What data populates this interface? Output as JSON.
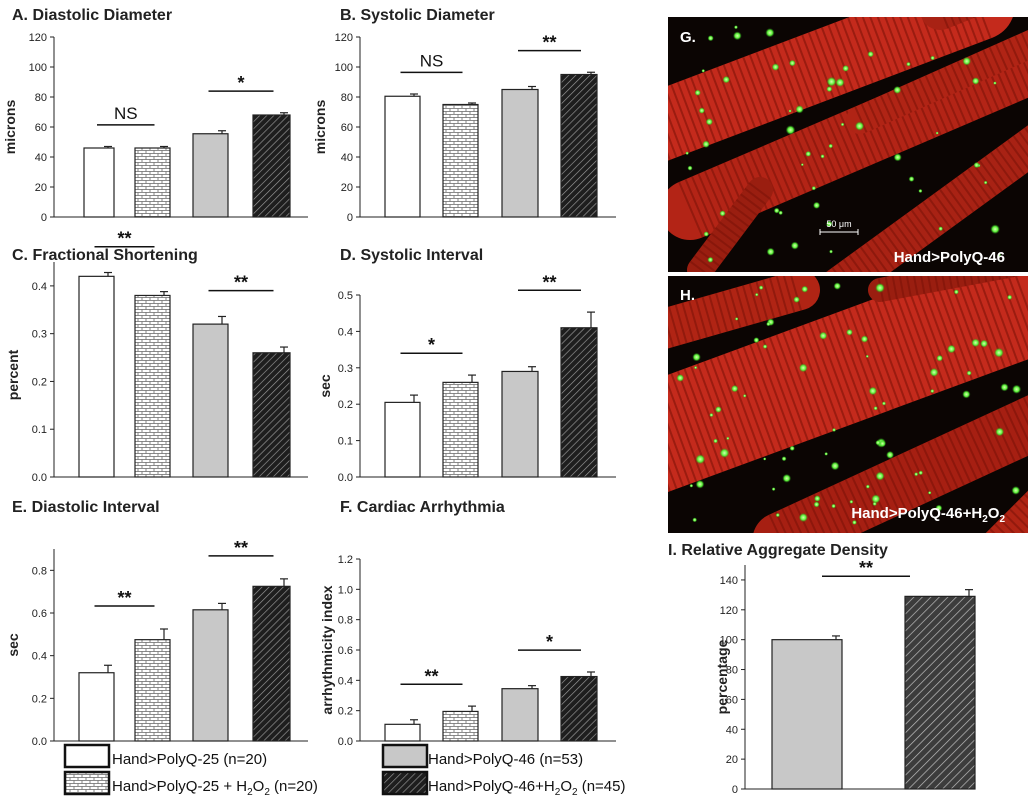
{
  "legend": [
    {
      "key": "c25",
      "label": "Hand>PolyQ-25 (n=20)"
    },
    {
      "key": "c25h",
      "label": "Hand>PolyQ-25 + H",
      "sub": "2",
      "tail": "O",
      "sub2": "2",
      "after": " (n=20)"
    },
    {
      "key": "c46",
      "label": "Hand>PolyQ-46 (n=53)"
    },
    {
      "key": "c46h",
      "label": "Hand>PolyQ-46+H",
      "sub": "2",
      "tail": "O",
      "sub2": "2",
      "after": " (n=45)"
    }
  ],
  "colors": {
    "c25": "#ffffff",
    "c25h": "#ffffff",
    "c46": "#c8c8c8",
    "c46h": "#3a3a3a",
    "red": "#c42a1c",
    "green": "#7dff5a"
  },
  "images": [
    {
      "letter": "G.",
      "caption": "Hand>PolyQ-46",
      "scale": "50 μm"
    },
    {
      "letter": "H.",
      "caption": "Hand>PolyQ-46+H",
      "sub": "2",
      "tail": "O",
      "sub2": "2"
    }
  ],
  "chart_data": [
    {
      "id": "A",
      "type": "bar",
      "title": "A. Diastolic Diameter",
      "ylabel": "microns",
      "ylim": [
        0,
        120
      ],
      "yticks": [
        "0",
        "20",
        "40",
        "60",
        "80",
        "100",
        "120"
      ],
      "values": [
        46,
        46,
        55.5,
        68
      ],
      "errors": [
        1,
        1,
        2,
        1.5
      ],
      "sig": [
        {
          "pair": [
            0,
            1
          ],
          "label": "NS"
        },
        {
          "pair": [
            2,
            3
          ],
          "label": "*"
        }
      ]
    },
    {
      "id": "B",
      "type": "bar",
      "title": "B. Systolic Diameter",
      "ylabel": "microns",
      "ylim": [
        0,
        120
      ],
      "yticks": [
        "0",
        "20",
        "40",
        "60",
        "80",
        "100",
        "120"
      ],
      "values": [
        80.5,
        75,
        85,
        95
      ],
      "errors": [
        1.5,
        1,
        2,
        1.5
      ],
      "sig": [
        {
          "pair": [
            0,
            1
          ],
          "label": "NS"
        },
        {
          "pair": [
            2,
            3
          ],
          "label": "**"
        }
      ]
    },
    {
      "id": "C",
      "type": "bar",
      "title": "C. Fractional Shortening",
      "ylabel": "percent",
      "ylim": [
        0,
        0.45
      ],
      "yticks": [
        "0.0",
        "0.1",
        "0.2",
        "0.3",
        "0.4"
      ],
      "values": [
        0.42,
        0.38,
        0.32,
        0.26
      ],
      "errors": [
        0.008,
        0.008,
        0.016,
        0.012
      ],
      "sig": [
        {
          "pair": [
            0,
            1
          ],
          "label": "**"
        },
        {
          "pair": [
            2,
            3
          ],
          "label": "**"
        }
      ]
    },
    {
      "id": "D",
      "type": "bar",
      "title": "D. Systolic Interval",
      "ylabel": "sec",
      "ylim": [
        0,
        0.5
      ],
      "yticks": [
        "0.0",
        "0.1",
        "0.2",
        "0.3",
        "0.4",
        "0.5"
      ],
      "values": [
        0.205,
        0.26,
        0.29,
        0.41
      ],
      "errors": [
        0.02,
        0.02,
        0.013,
        0.043
      ],
      "sig": [
        {
          "pair": [
            0,
            1
          ],
          "label": "*"
        },
        {
          "pair": [
            2,
            3
          ],
          "label": "**"
        }
      ]
    },
    {
      "id": "E",
      "type": "bar",
      "title": "E. Diastolic Interval",
      "ylabel": "sec",
      "ylim": [
        0,
        0.9
      ],
      "yticks": [
        "0.0",
        "0.2",
        "0.4",
        "0.6",
        "0.8"
      ],
      "values": [
        0.32,
        0.475,
        0.615,
        0.725
      ],
      "errors": [
        0.035,
        0.05,
        0.03,
        0.035
      ],
      "sig": [
        {
          "pair": [
            0,
            1
          ],
          "label": "**"
        },
        {
          "pair": [
            2,
            3
          ],
          "label": "**"
        }
      ]
    },
    {
      "id": "F",
      "type": "bar",
      "title": "F. Cardiac Arrhythmia",
      "ylabel": "arrhythmicity index",
      "ylim": [
        0,
        1.2
      ],
      "yticks": [
        "0.0",
        "0.2",
        "0.4",
        "0.6",
        "0.8",
        "1.0",
        "1.2"
      ],
      "values": [
        0.11,
        0.195,
        0.345,
        0.425
      ],
      "errors": [
        0.03,
        0.035,
        0.02,
        0.03
      ],
      "sig": [
        {
          "pair": [
            0,
            1
          ],
          "label": "**"
        },
        {
          "pair": [
            2,
            3
          ],
          "label": "*"
        }
      ]
    },
    {
      "id": "I",
      "type": "bar",
      "title": "I. Relative Aggregate Density",
      "ylabel": "percentage",
      "ylim": [
        0,
        150
      ],
      "yticks": [
        "0",
        "20",
        "40",
        "60",
        "80",
        "100",
        "120",
        "140"
      ],
      "values": [
        100,
        129
      ],
      "errors": [
        2.5,
        4.5
      ],
      "sig": [
        {
          "pair": [
            0,
            1
          ],
          "label": "**"
        }
      ]
    }
  ]
}
